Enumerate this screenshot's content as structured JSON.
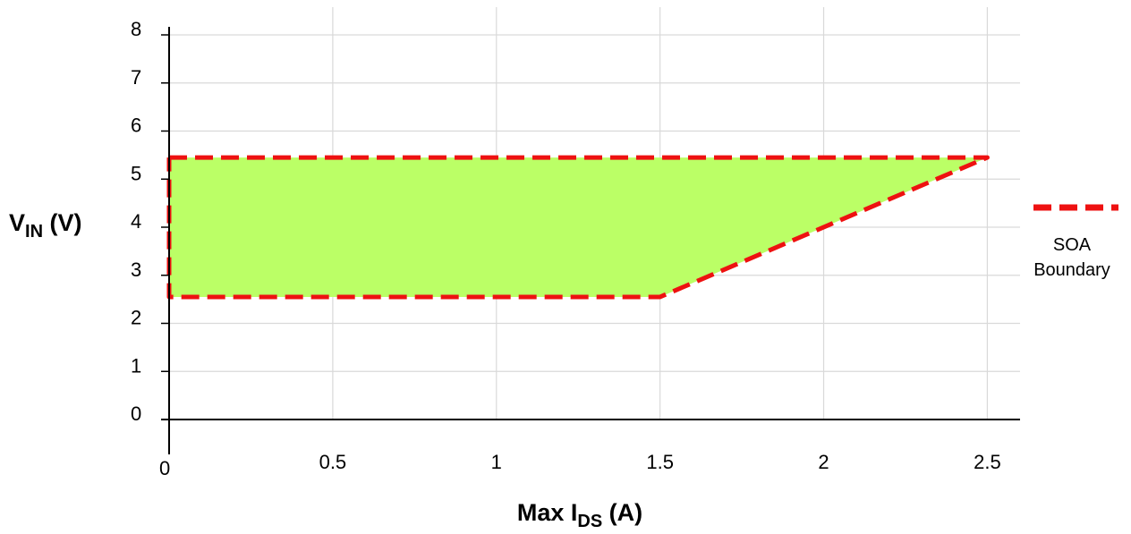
{
  "chart_data": {
    "type": "area",
    "title": "",
    "xlabel": {
      "prefix": "Max I",
      "sub": "DS",
      "suffix": " (A)"
    },
    "ylabel": {
      "prefix": "V",
      "sub": "IN",
      "suffix": " (V)"
    },
    "xlim": [
      0,
      2.6
    ],
    "ylim": [
      0,
      8
    ],
    "xticks": [
      "0",
      "0.5",
      "1",
      "1.5",
      "2",
      "2.5"
    ],
    "yticks": [
      "0",
      "1",
      "2",
      "3",
      "4",
      "5",
      "6",
      "7",
      "8"
    ],
    "grid": true,
    "legend_position": "right",
    "series": [
      {
        "name": "SOA Boundary",
        "x": [
          0,
          2.5,
          1.5,
          0,
          0
        ],
        "y": [
          5.45,
          5.45,
          2.55,
          2.55,
          5.45
        ]
      }
    ],
    "colors": {
      "fill": "#bbff66",
      "boundary": "#ee1111",
      "grid": "#d9d9d9",
      "axis": "#000000"
    }
  }
}
